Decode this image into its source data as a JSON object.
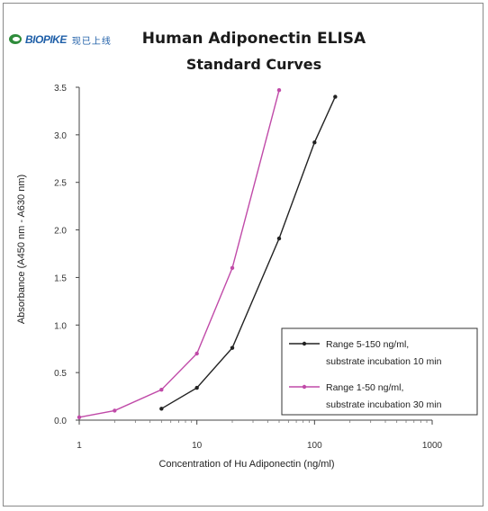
{
  "logo": {
    "brand": "BIOPIKE",
    "brand_cn": "现已上线"
  },
  "chart_data": {
    "type": "line",
    "title": "Human Adiponectin ELISA",
    "subtitle": "Standard Curves",
    "xlabel": "Concentration of Hu Adiponectin (ng/ml)",
    "ylabel": "Absorbance (A450 nm - A630 nm)",
    "x_scale": "log",
    "xlim": [
      1,
      1000
    ],
    "ylim": [
      0,
      3.5
    ],
    "x_ticks": [
      "1",
      "10",
      "100",
      "1000"
    ],
    "y_ticks": [
      "0.0",
      "0.5",
      "1.0",
      "1.5",
      "2.0",
      "2.5",
      "3.0",
      "3.5"
    ],
    "grid": false,
    "legend_position": "bottom-right",
    "series": [
      {
        "name": "Range 5-150 ng/ml, substrate incubation 10 min",
        "legend_lines": [
          "Range 5-150 ng/ml,",
          "substrate incubation 10 min"
        ],
        "color": "#222222",
        "x": [
          5,
          10,
          20,
          50,
          100,
          150
        ],
        "y": [
          0.12,
          0.34,
          0.76,
          1.91,
          2.92,
          3.4
        ]
      },
      {
        "name": "Range 1-50 ng/ml, substrate incubation 30 min",
        "legend_lines": [
          "Range 1-50 ng/ml,",
          "substrate incubation 30 min"
        ],
        "color": "#c04aa8",
        "x": [
          1,
          2,
          5,
          10,
          20,
          50
        ],
        "y": [
          0.03,
          0.1,
          0.32,
          0.7,
          1.6,
          3.47
        ]
      }
    ]
  }
}
